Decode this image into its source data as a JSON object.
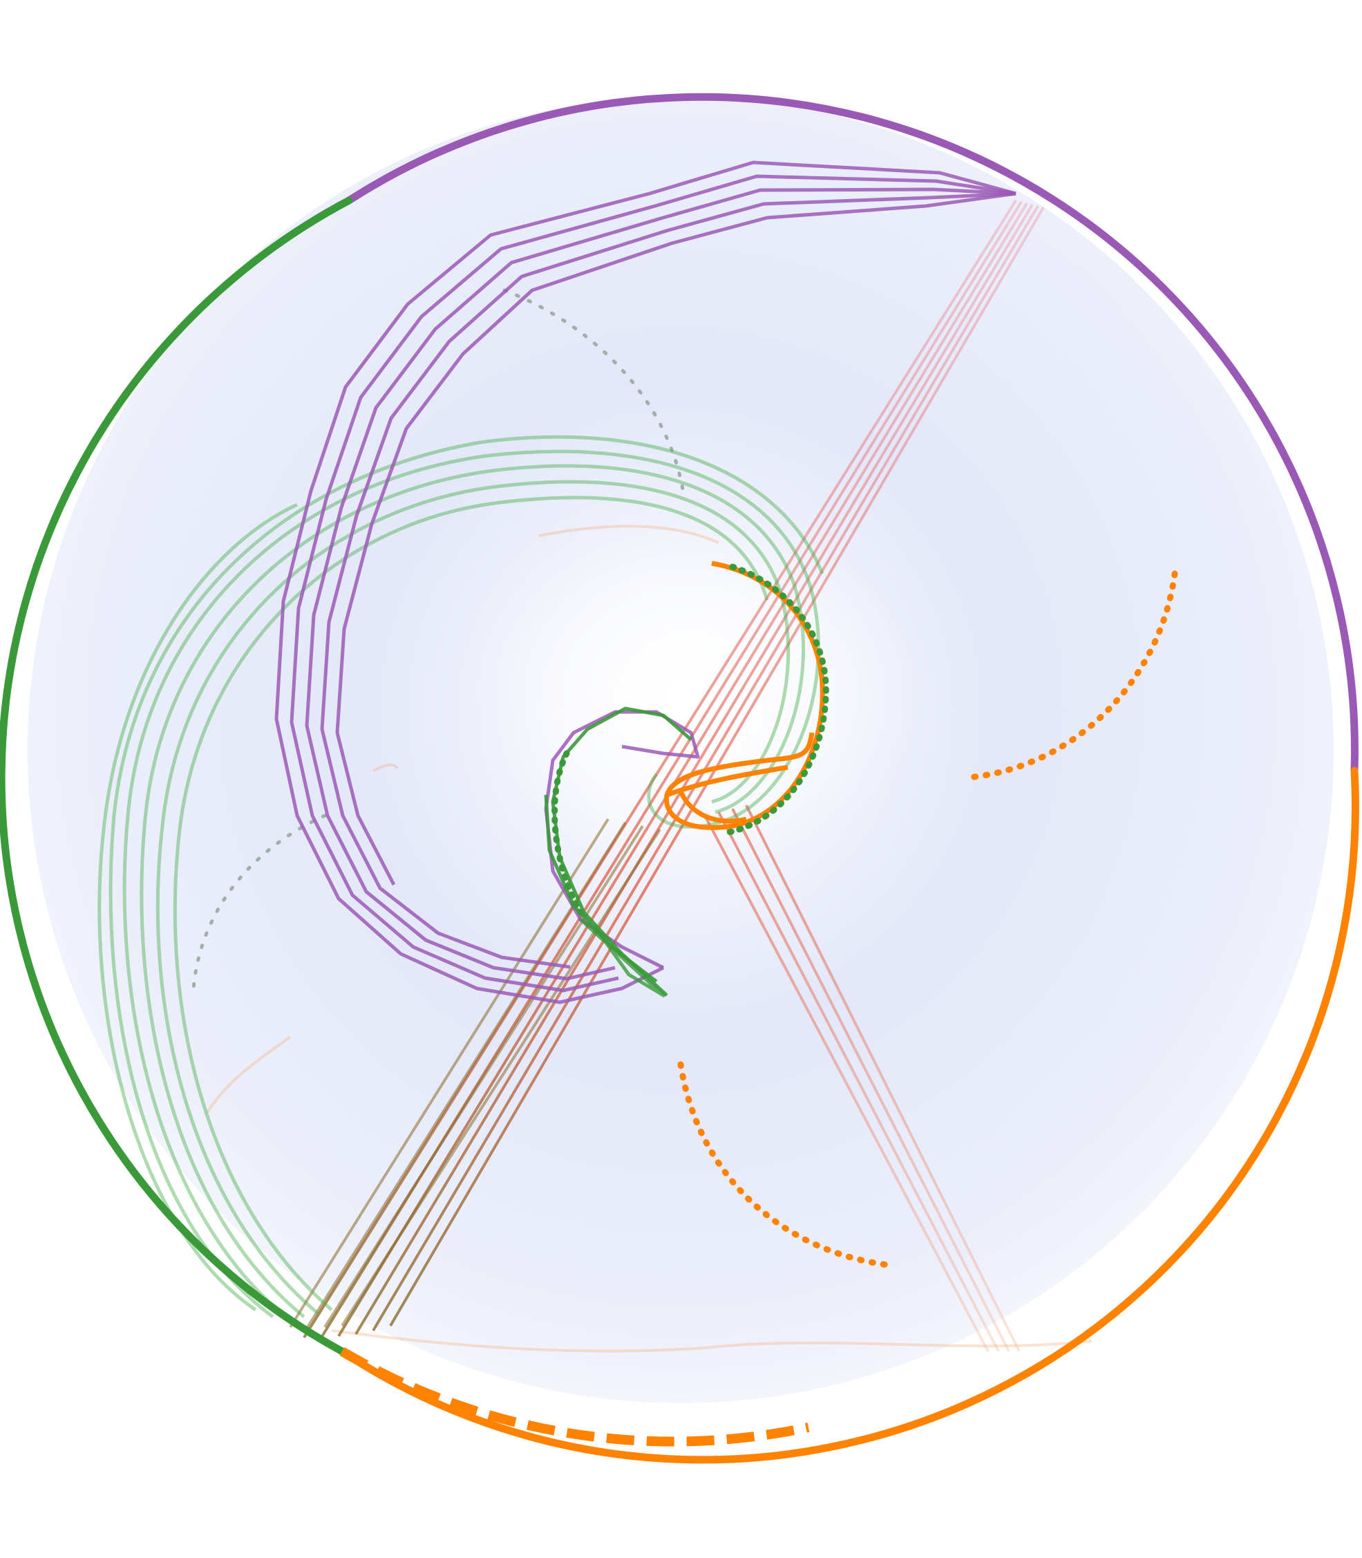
{
  "diagram": {
    "type": "circular-hyperbolic-graph",
    "background_gradient": [
      "#ffffff",
      "#e6e9f8"
    ],
    "boundary_arcs": [
      {
        "group": "purple",
        "color": "#9b59b6"
      },
      {
        "group": "orange",
        "color": "#ff8200"
      },
      {
        "group": "green",
        "color": "#3a9a3a"
      }
    ],
    "edge_bundles": [
      {
        "group": "purple-spiral",
        "color": "#9b59b6"
      },
      {
        "group": "green-spiral",
        "color": "#4caf50"
      },
      {
        "group": "orange-core",
        "color": "#ff8200"
      },
      {
        "group": "red-crossing",
        "color": "#e0503a"
      }
    ],
    "dotted_arcs": [
      {
        "group": "orange",
        "color": "#ff8200"
      },
      {
        "group": "orange",
        "color": "#ff8200"
      },
      {
        "group": "grey",
        "color": "#9fb0a8"
      },
      {
        "group": "grey",
        "color": "#9fb0a8"
      }
    ]
  }
}
